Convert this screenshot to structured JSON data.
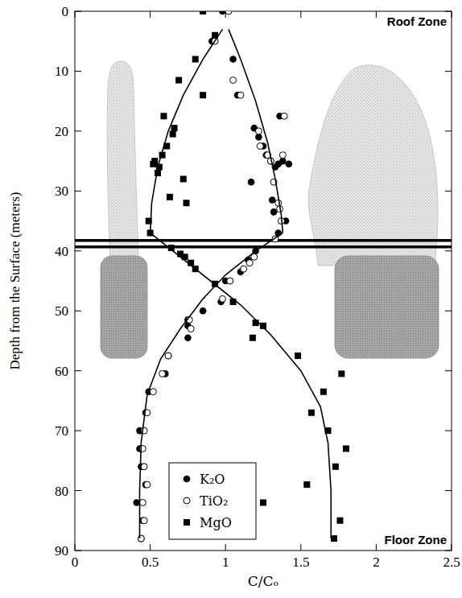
{
  "chart_data": {
    "type": "scatter",
    "x_label": "C/Cₒ",
    "y_label": "Depth from the Surface (meters)",
    "annotations": [
      "Roof Zone",
      "Floor Zone"
    ],
    "xlim": [
      0,
      2.5
    ],
    "xticks": [
      0,
      0.5,
      1,
      1.5,
      2,
      2.5
    ],
    "ylim": [
      90,
      0
    ],
    "yticks": [
      0,
      10,
      20,
      30,
      40,
      50,
      60,
      70,
      80,
      90
    ],
    "legend": "bottom-left",
    "grid": false,
    "series": [
      {
        "name": "K₂O",
        "color": "#000000",
        "marker": "circle",
        "x": [
          0.98,
          0.91,
          1.05,
          1.08,
          1.19,
          1.22,
          1.25,
          1.27,
          1.3,
          1.33,
          1.35,
          1.38,
          1.42,
          1.17,
          1.31,
          1.32,
          1.4,
          1.36,
          1.35,
          1.2,
          1.15,
          1.1,
          1.0,
          0.97,
          0.85,
          0.75,
          0.75,
          0.75,
          0.62,
          0.6,
          0.49,
          0.47,
          0.43,
          0.43,
          0.44,
          0.47,
          0.41,
          0.45,
          0.44
        ],
        "values": [
          0,
          5,
          8,
          14,
          19.5,
          21,
          22.5,
          24,
          25,
          26,
          25.5,
          25,
          25.5,
          28.5,
          31.5,
          33.5,
          35,
          17.5,
          37,
          40,
          41.5,
          43.5,
          45,
          48.5,
          50,
          51.5,
          52.5,
          54.5,
          57.5,
          60.5,
          63.5,
          67,
          70,
          73,
          76,
          79,
          82,
          85,
          88
        ]
      },
      {
        "name": "TiO₂",
        "color": "#000000",
        "marker": "open-circle",
        "x": [
          1.02,
          0.93,
          1.05,
          1.1,
          1.22,
          1.23,
          1.28,
          1.3,
          1.32,
          1.35,
          1.36,
          1.38,
          1.37,
          1.39,
          1.33,
          1.19,
          1.16,
          1.12,
          1.03,
          0.98,
          0.76,
          0.77,
          0.62,
          0.58,
          0.52,
          0.48,
          0.46,
          0.45,
          0.46,
          0.48,
          0.45,
          0.46,
          0.44
        ],
        "values": [
          0,
          5,
          11.5,
          14,
          20,
          22.5,
          24,
          25,
          28.5,
          32,
          33,
          24,
          35,
          17.5,
          38,
          41,
          42,
          43,
          45,
          48,
          51.5,
          53,
          57.5,
          60.5,
          63.5,
          67,
          70,
          73,
          76,
          79,
          82,
          85,
          88
        ]
      },
      {
        "name": "MgO",
        "color": "#000000",
        "marker": "square",
        "x": [
          0.85,
          0.93,
          0.8,
          0.69,
          0.85,
          0.59,
          0.66,
          0.65,
          0.61,
          0.58,
          0.53,
          0.52,
          0.56,
          0.55,
          0.72,
          0.63,
          0.74,
          0.49,
          0.5,
          0.64,
          0.7,
          0.73,
          0.77,
          0.8,
          0.93,
          1.05,
          1.2,
          1.25,
          1.18,
          1.48,
          1.77,
          1.65,
          1.57,
          1.68,
          1.8,
          1.73,
          1.54,
          1.25,
          1.76,
          1.72
        ],
        "values": [
          0,
          4,
          8,
          11.5,
          14,
          17.5,
          19.5,
          20.5,
          22.5,
          24,
          25,
          25.5,
          26,
          27,
          28,
          31,
          32,
          35,
          37,
          39.5,
          40.5,
          41,
          42,
          43,
          45.5,
          48.5,
          52,
          52.5,
          54.5,
          57.5,
          60.5,
          63.5,
          67,
          70,
          73,
          76,
          79,
          82,
          85,
          88
        ]
      },
      {
        "type": "line",
        "color": "#000000",
        "marker": "none",
        "line_style": "solid",
        "x": [
          1.02,
          1.1,
          1.2,
          1.28,
          1.33,
          1.37,
          1.38
        ],
        "values": [
          3,
          8,
          15,
          22,
          28,
          34,
          37
        ]
      },
      {
        "type": "line",
        "color": "#000000",
        "marker": "none",
        "line_style": "solid",
        "x": [
          0.98,
          0.85,
          0.72,
          0.62,
          0.55,
          0.51,
          0.5
        ],
        "values": [
          3,
          8,
          14,
          20,
          26,
          32,
          37
        ]
      },
      {
        "type": "line",
        "color": "#000000",
        "marker": "none",
        "line_style": "solid",
        "x": [
          0.5,
          0.7,
          0.9,
          1.1,
          1.3,
          1.5,
          1.63,
          1.68,
          1.7,
          1.7
        ],
        "values": [
          37,
          41,
          45,
          49,
          54,
          60,
          66,
          72,
          80,
          88
        ]
      },
      {
        "type": "line",
        "color": "#000000",
        "marker": "none",
        "line_style": "solid",
        "x": [
          1.38,
          1.2,
          1.0,
          0.85,
          0.7,
          0.57,
          0.48,
          0.44,
          0.43,
          0.43
        ],
        "values": [
          37,
          40,
          44,
          48,
          53,
          58,
          64,
          72,
          80,
          88
        ]
      }
    ]
  }
}
